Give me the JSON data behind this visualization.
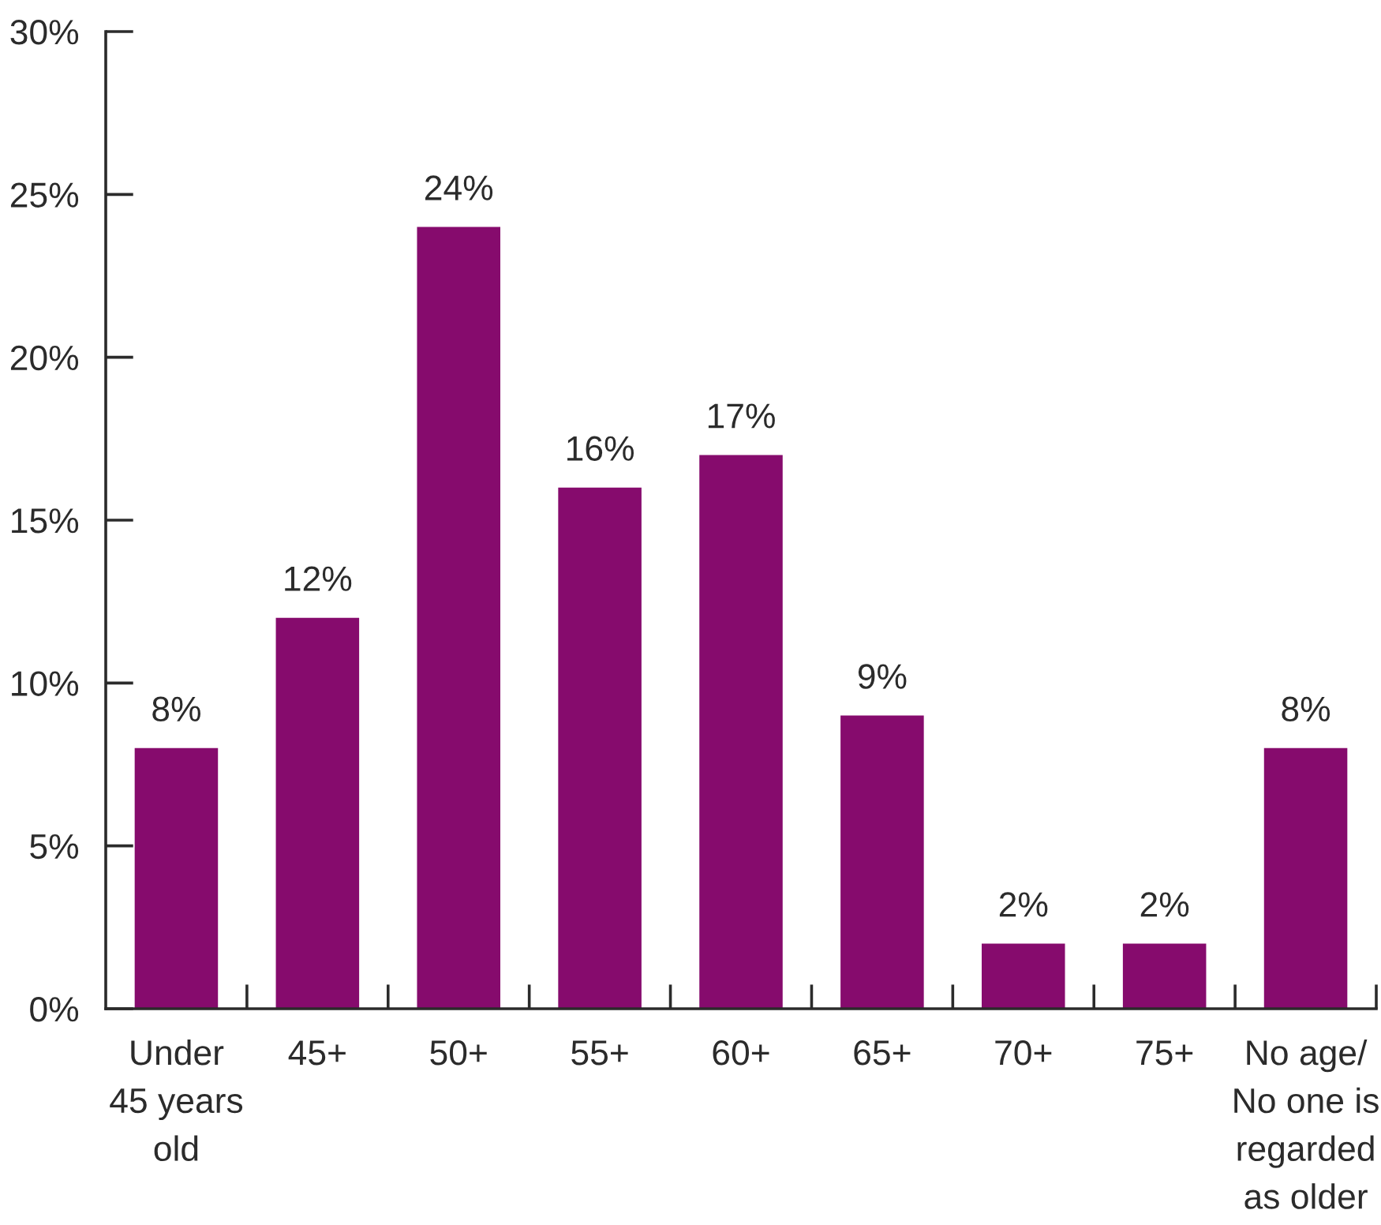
{
  "chart_data": {
    "type": "bar",
    "categories": [
      "Under\n45 years\nold",
      "45+",
      "50+",
      "55+",
      "60+",
      "65+",
      "70+",
      "75+",
      "No age/\nNo one is\nregarded\nas older"
    ],
    "values": [
      8,
      12,
      24,
      16,
      17,
      9,
      2,
      2,
      8
    ],
    "value_labels": [
      "8%",
      "12%",
      "24%",
      "16%",
      "17%",
      "9%",
      "2%",
      "2%",
      "8%"
    ],
    "color": "#860b6d",
    "ylim": [
      0,
      30
    ],
    "yticks": [
      {
        "value": 0,
        "label": "0%"
      },
      {
        "value": 5,
        "label": "5%"
      },
      {
        "value": 10,
        "label": "10%"
      },
      {
        "value": 15,
        "label": "15%"
      },
      {
        "value": 20,
        "label": "20%"
      },
      {
        "value": 25,
        "label": "25%"
      },
      {
        "value": 30,
        "label": "30%"
      }
    ],
    "grid": false,
    "legend": false
  }
}
